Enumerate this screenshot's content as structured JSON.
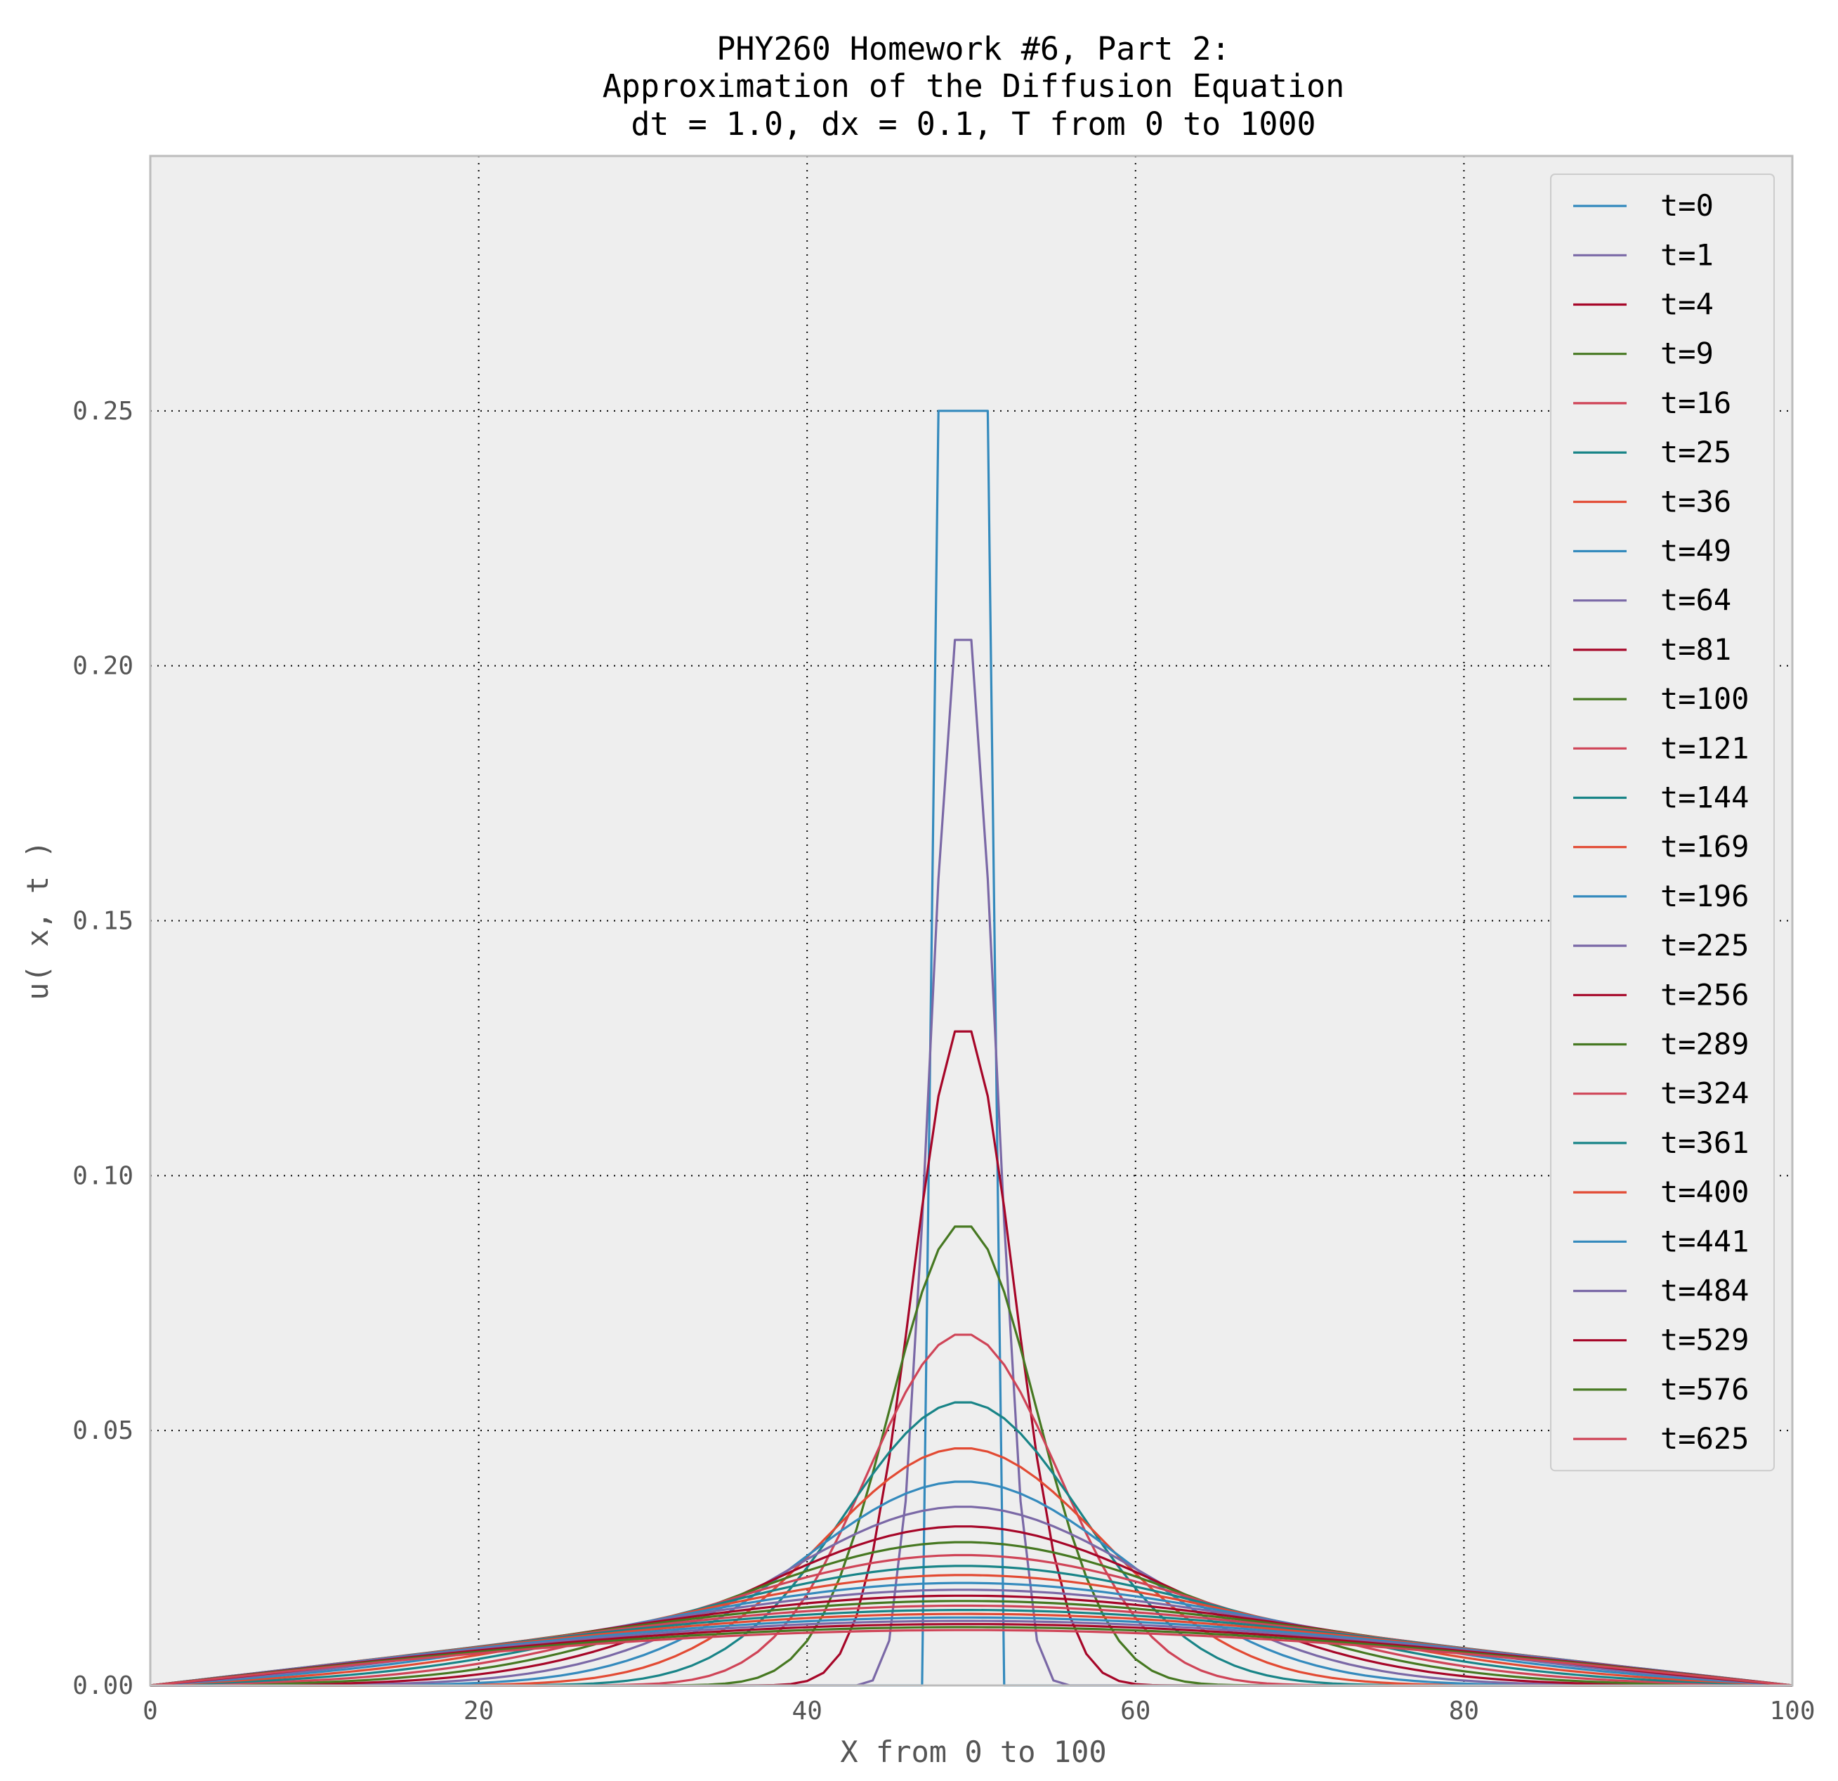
{
  "chart_data": {
    "type": "line",
    "title": [
      "PHY260 Homework #6, Part 2:",
      "Approximation of the Diffusion Equation",
      "dt = 1.0, dx = 0.1, T from 0 to 1000"
    ],
    "xlabel": "X from 0 to  100",
    "ylabel": "u( x, t )",
    "xlim": [
      0,
      100
    ],
    "ylim": [
      0,
      0.3
    ],
    "xticks": [
      0,
      20,
      40,
      60,
      80,
      100
    ],
    "xtick_labels": [
      "0",
      "20",
      "40",
      "60",
      "80",
      "100"
    ],
    "yticks": [
      0,
      0.05,
      0.1,
      0.15,
      0.2,
      0.25
    ],
    "ytick_labels": [
      "0.00",
      "0.05",
      "0.10",
      "0.15",
      "0.20",
      "0.25"
    ],
    "grid": true,
    "legend_position": "top-right",
    "colors": [
      "#348ABD",
      "#7A68A6",
      "#A60628",
      "#467821",
      "#CF4457",
      "#188487",
      "#E24A33"
    ],
    "initial_condition": {
      "x": [
        48,
        51
      ],
      "value": 0.25
    },
    "series": [
      {
        "name": "t=0",
        "t": 0
      },
      {
        "name": "t=1",
        "t": 1
      },
      {
        "name": "t=4",
        "t": 4
      },
      {
        "name": "t=9",
        "t": 9
      },
      {
        "name": "t=16",
        "t": 16
      },
      {
        "name": "t=25",
        "t": 25
      },
      {
        "name": "t=36",
        "t": 36
      },
      {
        "name": "t=49",
        "t": 49
      },
      {
        "name": "t=64",
        "t": 64
      },
      {
        "name": "t=81",
        "t": 81
      },
      {
        "name": "t=100",
        "t": 100
      },
      {
        "name": "t=121",
        "t": 121
      },
      {
        "name": "t=144",
        "t": 144
      },
      {
        "name": "t=169",
        "t": 169
      },
      {
        "name": "t=196",
        "t": 196
      },
      {
        "name": "t=225",
        "t": 225
      },
      {
        "name": "t=256",
        "t": 256
      },
      {
        "name": "t=289",
        "t": 289
      },
      {
        "name": "t=324",
        "t": 324
      },
      {
        "name": "t=361",
        "t": 361
      },
      {
        "name": "t=400",
        "t": 400
      },
      {
        "name": "t=441",
        "t": 441
      },
      {
        "name": "t=484",
        "t": 484
      },
      {
        "name": "t=529",
        "t": 529
      },
      {
        "name": "t=576",
        "t": 576
      },
      {
        "name": "t=625",
        "t": 625
      }
    ]
  }
}
